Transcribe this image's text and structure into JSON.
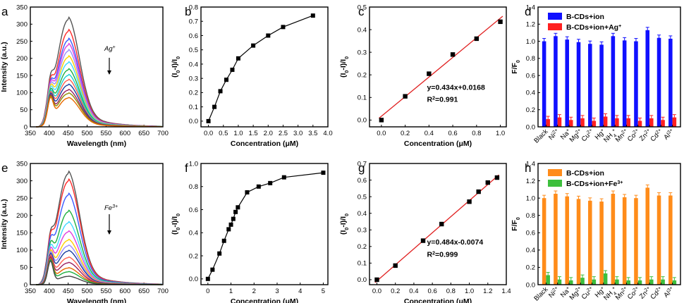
{
  "chart_data": [
    {
      "id": "a",
      "letter": "a",
      "type": "line",
      "xlabel": "Wavelength (nm)",
      "ylabel": "Intensity (a.u.)",
      "xlim": [
        350,
        700
      ],
      "ylim": [
        0,
        350
      ],
      "xticks": [
        350,
        400,
        450,
        500,
        550,
        600,
        650,
        700
      ],
      "yticks": [
        0,
        50,
        100,
        150,
        200,
        250,
        300,
        350
      ],
      "annotation": "Ag",
      "annotation_sup": "+",
      "series": [
        {
          "peak": 313,
          "color": "#555555"
        },
        {
          "peak": 278,
          "color": "#ff2a2a"
        },
        {
          "peak": 253,
          "color": "#3b5bff"
        },
        {
          "peak": 238,
          "color": "#e040e0"
        },
        {
          "peak": 221,
          "color": "#9c8cff"
        },
        {
          "peak": 203,
          "color": "#ffd000"
        },
        {
          "peak": 186,
          "color": "#40d8ff"
        },
        {
          "peak": 166,
          "color": "#20b040"
        },
        {
          "peak": 150,
          "color": "#1ad0d0"
        },
        {
          "peak": 136,
          "color": "#ff6050"
        },
        {
          "peak": 122,
          "color": "#1a3fa0"
        },
        {
          "peak": 107,
          "color": "#9a2060"
        },
        {
          "peak": 97,
          "color": "#8c8c00"
        },
        {
          "peak": 84,
          "color": "#e86a00"
        }
      ]
    },
    {
      "id": "b",
      "letter": "b",
      "type": "line",
      "xlabel": "Concentration (μM)",
      "ylabel": "(I",
      "xlim": [
        -0.25,
        4.0
      ],
      "ylim": [
        -0.04,
        0.8
      ],
      "xticks": [
        0.0,
        0.5,
        1.0,
        1.5,
        2.0,
        2.5,
        3.0,
        3.5,
        4.0
      ],
      "yticks": [
        0.0,
        0.1,
        0.2,
        0.3,
        0.4,
        0.5,
        0.6,
        0.7,
        0.8
      ],
      "x": [
        0,
        0.2,
        0.4,
        0.6,
        0.8,
        1.0,
        1.5,
        2.0,
        2.5,
        3.5
      ],
      "y": [
        0.0,
        0.1,
        0.21,
        0.29,
        0.36,
        0.44,
        0.53,
        0.6,
        0.66,
        0.74
      ]
    },
    {
      "id": "c",
      "letter": "c",
      "type": "scatter",
      "xlabel": "Concentration (μM)",
      "ylabel": "(I",
      "xlim": [
        -0.1,
        1.05
      ],
      "ylim": [
        -0.03,
        0.5
      ],
      "xticks": [
        0.0,
        0.2,
        0.4,
        0.6,
        0.8,
        1.0
      ],
      "yticks": [
        0.0,
        0.1,
        0.2,
        0.3,
        0.4,
        0.5
      ],
      "x": [
        0,
        0.2,
        0.4,
        0.6,
        0.8,
        1.0
      ],
      "y": [
        0.0,
        0.105,
        0.205,
        0.29,
        0.36,
        0.435
      ],
      "fit": {
        "slope": 0.434,
        "intercept": 0.0168
      },
      "eq": "y=0.434x+0.0168",
      "r2_prefix": "R",
      "r2_value": "=0.991"
    },
    {
      "id": "d",
      "letter": "d",
      "type": "bar",
      "xlabel": "",
      "ylabel": "F/F",
      "ylim": [
        0,
        1.4
      ],
      "yticks": [
        0.0,
        0.2,
        0.4,
        0.6,
        0.8,
        1.0,
        1.2,
        1.4
      ],
      "categories": [
        {
          "base": "Black",
          "sup": ""
        },
        {
          "base": "Ni",
          "sup": "2+"
        },
        {
          "base": "Na",
          "sup": "+"
        },
        {
          "base": "Mg",
          "sup": "2+"
        },
        {
          "base": "Cu",
          "sup": "2+"
        },
        {
          "base": "Hg",
          "sup": "+"
        },
        {
          "base": "NH",
          "sub": "4",
          "sup": "+"
        },
        {
          "base": "Mn",
          "sup": "2+"
        },
        {
          "base": "Co",
          "sup": "2+"
        },
        {
          "base": "Zn",
          "sup": "2+"
        },
        {
          "base": "Cd",
          "sup": "2+"
        },
        {
          "base": "Al",
          "sup": "3+"
        }
      ],
      "series": [
        {
          "name": "B-CDs+ion",
          "color": "#1010ff",
          "values": [
            1.0,
            1.06,
            1.02,
            0.99,
            0.97,
            0.96,
            1.06,
            1.01,
            1.0,
            1.13,
            1.04,
            1.03
          ]
        },
        {
          "name": "B-CDs+ion+Ag",
          "name_sup": "+",
          "color": "#ff2020",
          "values": [
            0.09,
            0.11,
            0.08,
            0.1,
            0.07,
            0.12,
            0.1,
            0.1,
            0.07,
            0.1,
            0.08,
            0.11
          ]
        }
      ]
    },
    {
      "id": "e",
      "letter": "e",
      "type": "line",
      "xlabel": "Wavelength (nm)",
      "ylabel": "Intensity (a.u.)",
      "xlim": [
        350,
        700
      ],
      "ylim": [
        0,
        350
      ],
      "xticks": [
        350,
        400,
        450,
        500,
        550,
        600,
        650,
        700
      ],
      "yticks": [
        0,
        50,
        100,
        150,
        200,
        250,
        300,
        350
      ],
      "annotation": "Fe",
      "annotation_sup": "3+",
      "series": [
        {
          "peak": 320,
          "color": "#555555"
        },
        {
          "peak": 298,
          "color": "#ff2a2a"
        },
        {
          "peak": 258,
          "color": "#3b5bff"
        },
        {
          "peak": 210,
          "color": "#20b040"
        },
        {
          "peak": 178,
          "color": "#40d8ff"
        },
        {
          "peak": 152,
          "color": "#e040e0"
        },
        {
          "peak": 128,
          "color": "#ffd000"
        },
        {
          "peak": 112,
          "color": "#9c8cff"
        },
        {
          "peak": 97,
          "color": "#1a3fa0"
        },
        {
          "peak": 78,
          "color": "#ff6050"
        },
        {
          "peak": 63,
          "color": "#9a2060"
        },
        {
          "peak": 48,
          "color": "#e86a00"
        },
        {
          "peak": 37,
          "color": "#20b040"
        },
        {
          "peak": 24,
          "color": "#444444"
        }
      ]
    },
    {
      "id": "f",
      "letter": "f",
      "type": "line",
      "xlabel": "Concentration (μM)",
      "ylabel": "(I",
      "xlim": [
        -0.3,
        5.2
      ],
      "ylim": [
        -0.05,
        1.0
      ],
      "xticks": [
        0,
        1,
        2,
        3,
        4,
        5
      ],
      "yticks": [
        0.0,
        0.2,
        0.4,
        0.6,
        0.8,
        1.0
      ],
      "x": [
        0,
        0.2,
        0.5,
        0.7,
        0.9,
        1.0,
        1.1,
        1.2,
        1.3,
        1.7,
        2.2,
        2.7,
        3.3,
        5.0
      ],
      "y": [
        0.0,
        0.08,
        0.22,
        0.33,
        0.43,
        0.47,
        0.52,
        0.58,
        0.62,
        0.75,
        0.8,
        0.83,
        0.88,
        0.92
      ]
    },
    {
      "id": "g",
      "letter": "g",
      "type": "scatter",
      "xlabel": "Concentration (μM)",
      "ylabel": "(I",
      "xlim": [
        -0.08,
        1.4
      ],
      "ylim": [
        -0.03,
        0.7
      ],
      "xticks": [
        0.0,
        0.2,
        0.4,
        0.6,
        0.8,
        1.0,
        1.2,
        1.4
      ],
      "yticks": [
        0.0,
        0.1,
        0.2,
        0.3,
        0.4,
        0.5,
        0.6,
        0.7
      ],
      "x": [
        0,
        0.2,
        0.5,
        0.7,
        1.0,
        1.1,
        1.2,
        1.3
      ],
      "y": [
        0.0,
        0.085,
        0.235,
        0.335,
        0.47,
        0.53,
        0.585,
        0.615
      ],
      "fit": {
        "slope": 0.484,
        "intercept": -0.0074
      },
      "eq": "y=0.484x-0.0074",
      "r2_prefix": "R",
      "r2_value": "=0.999"
    },
    {
      "id": "h",
      "letter": "h",
      "type": "bar",
      "xlabel": "",
      "ylabel": "F/F",
      "ylim": [
        0,
        1.4
      ],
      "yticks": [
        0.0,
        0.2,
        0.4,
        0.6,
        0.8,
        1.0,
        1.2,
        1.4
      ],
      "categories": [
        {
          "base": "Black",
          "sup": ""
        },
        {
          "base": "Ni",
          "sup": "2+"
        },
        {
          "base": "Na",
          "sup": "+"
        },
        {
          "base": "Mg",
          "sup": "2+"
        },
        {
          "base": "Cu",
          "sup": "2+"
        },
        {
          "base": "Hg",
          "sup": "+"
        },
        {
          "base": "NH",
          "sub": "4",
          "sup": "+"
        },
        {
          "base": "Mn",
          "sup": "2+"
        },
        {
          "base": "Co",
          "sup": "2+"
        },
        {
          "base": "Zn",
          "sup": "2+"
        },
        {
          "base": "Cd",
          "sup": "2+"
        },
        {
          "base": "Al",
          "sup": "3+"
        }
      ],
      "series": [
        {
          "name": "B-CDs+ion",
          "color": "#ff8c1a",
          "values": [
            1.0,
            1.05,
            1.02,
            0.99,
            0.97,
            0.96,
            1.05,
            1.01,
            1.0,
            1.12,
            1.03,
            1.03
          ]
        },
        {
          "name": "B-CDs+ion+Fe",
          "name_sup": "3+",
          "color": "#3dbf3d",
          "values": [
            0.11,
            0.06,
            0.05,
            0.08,
            0.06,
            0.13,
            0.06,
            0.05,
            0.05,
            0.06,
            0.06,
            0.05
          ]
        }
      ]
    }
  ]
}
